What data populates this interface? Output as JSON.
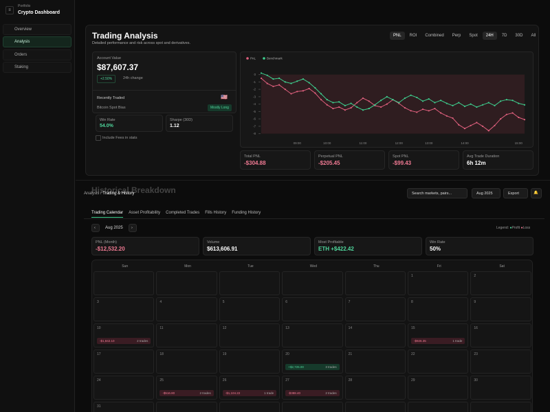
{
  "sidebar": {
    "subtitle": "Portfolio",
    "title": "Crypto Dashboard",
    "nav": [
      "Overview",
      "Analysis",
      "Orders",
      "Staking"
    ]
  },
  "analysis": {
    "title": "Trading Analysis",
    "subtitle": "Detailed performance and risk across spot and derivatives.",
    "metric_tabs": [
      "PNL",
      "ROI",
      "Combined",
      "Perp",
      "Spot"
    ],
    "range_tabs": [
      "24H",
      "7D",
      "30D",
      "All"
    ],
    "account": {
      "label": "Account Value",
      "value": "$87,607.37",
      "change": "+2.50%",
      "change_label": "24h change"
    },
    "recent": {
      "label": "Recently Traded",
      "bias_label": "Bitcoin Spot Bias",
      "bias": "Mostly Long",
      "win_rate_label": "Win Rate",
      "win_rate": "54.0%",
      "sharpe_label": "Sharpe (30D)",
      "sharpe": "1.12",
      "fees": "Include Fees in stats"
    },
    "stats": [
      {
        "label": "Total PNL",
        "value": "-$304.88"
      },
      {
        "label": "Perpetual PNL",
        "value": "-$205.45"
      },
      {
        "label": "Spot PNL",
        "value": "-$99.43"
      },
      {
        "label": "Avg Trade Duration",
        "value": "6h 12m"
      }
    ]
  },
  "chart_data": {
    "type": "line",
    "categories": [
      null,
      null,
      null,
      null,
      null,
      null,
      "09:00",
      null,
      null,
      null,
      null,
      "10:00",
      null,
      null,
      null,
      null,
      null,
      "11:00",
      null,
      null,
      null,
      null,
      null,
      "12:00",
      null,
      null,
      null,
      null,
      "13:00",
      null,
      null,
      null,
      null,
      null,
      "14:00",
      null,
      null,
      null,
      null,
      null,
      null,
      null,
      null,
      "15:00",
      null
    ],
    "series": [
      {
        "name": "PnL",
        "color": "#e0607e",
        "values": [
          -0.5,
          -1.2,
          -1.6,
          -1.4,
          -2.0,
          -2.6,
          -2.3,
          -2.2,
          -1.9,
          -2.5,
          -3.4,
          -4.1,
          -4.6,
          -4.4,
          -4.8,
          -4.5,
          -3.8,
          -3.2,
          -3.6,
          -4.2,
          -4.4,
          -4.0,
          -3.4,
          -3.9,
          -4.5,
          -4.9,
          -5.1,
          -4.7,
          -4.9,
          -4.6,
          -5.2,
          -5.6,
          -5.9,
          -6.8,
          -7.3,
          -6.9,
          -6.5,
          -7.0,
          -7.6,
          -6.9,
          -6.0,
          -5.4,
          -5.2,
          -5.8,
          -6.1
        ]
      },
      {
        "name": "Benchmark",
        "color": "#3ecf8e",
        "values": [
          0.2,
          -0.1,
          -0.6,
          -0.5,
          -1.0,
          -1.2,
          -0.9,
          -0.6,
          -1.1,
          -1.8,
          -2.6,
          -3.4,
          -3.8,
          -3.7,
          -4.2,
          -3.9,
          -4.4,
          -4.8,
          -4.6,
          -4.1,
          -3.5,
          -3.0,
          -3.4,
          -3.8,
          -3.2,
          -2.8,
          -3.1,
          -3.6,
          -3.3,
          -3.8,
          -3.5,
          -3.9,
          -4.2,
          -3.8,
          -4.3,
          -4.0,
          -4.4,
          -4.1,
          -3.8,
          -4.2,
          -3.6,
          -3.4,
          -3.5,
          -3.9,
          -4.1
        ]
      }
    ],
    "ylim": [
      -8.5,
      0.8
    ],
    "yticks": [
      0,
      -1,
      -2,
      -3,
      -4,
      -5,
      -6,
      -7,
      -8
    ],
    "grid": false
  },
  "history": {
    "title": "Historical Breakdown",
    "breadcrumb": "Analysis",
    "breadcrumb_current": "Trading & History",
    "search": "Search markets, pairs...",
    "month_button": "Aug 2025",
    "export": "Export",
    "tabs": [
      "Trading Calendar",
      "Asset Profitability",
      "Completed Trades",
      "Fills History",
      "Funding History"
    ],
    "month": "Aug 2025",
    "legend_label": "Legend:",
    "legend": [
      "Profit",
      "Loss"
    ],
    "stats": [
      {
        "label": "PNL (Month)",
        "value": "-$12,532.20"
      },
      {
        "label": "Volume",
        "value": "$613,606.91"
      },
      {
        "label": "Most Profitable",
        "value": "ETH +$422.42"
      },
      {
        "label": "Win Rate",
        "value": "50%"
      }
    ]
  },
  "calendar": {
    "weekdays": [
      "Sun",
      "Mon",
      "Tue",
      "Wed",
      "Thu",
      "Fri",
      "Sat"
    ],
    "weeks": [
      [
        null,
        null,
        null,
        null,
        null,
        "1",
        "2"
      ],
      [
        "3",
        "4",
        "5",
        "6",
        "7",
        "8",
        "9"
      ],
      [
        "10",
        "11",
        "12",
        "13",
        "14",
        "15",
        "16"
      ],
      [
        "17",
        "18",
        "19",
        "20",
        "21",
        "22",
        "23"
      ],
      [
        "24",
        "25",
        "26",
        "27",
        "28",
        "29",
        "30"
      ],
      [
        "31",
        null,
        null,
        null,
        null,
        null,
        null
      ]
    ],
    "entries": [
      {
        "day": "10",
        "pnl": "-$1,842.10",
        "trades": "2 trades"
      },
      {
        "day": "15",
        "pnl": "-$926.35",
        "trades": "1 trade"
      },
      {
        "day": "20",
        "pnl": "+$2,725.00",
        "trades": "3 trades"
      },
      {
        "day": "25",
        "pnl": "-$516.80",
        "trades": "2 trades"
      },
      {
        "day": "26",
        "pnl": "-$1,104.22",
        "trades": "1 trade"
      },
      {
        "day": "27",
        "pnl": "-$388.40",
        "trades": "2 trades"
      }
    ]
  }
}
